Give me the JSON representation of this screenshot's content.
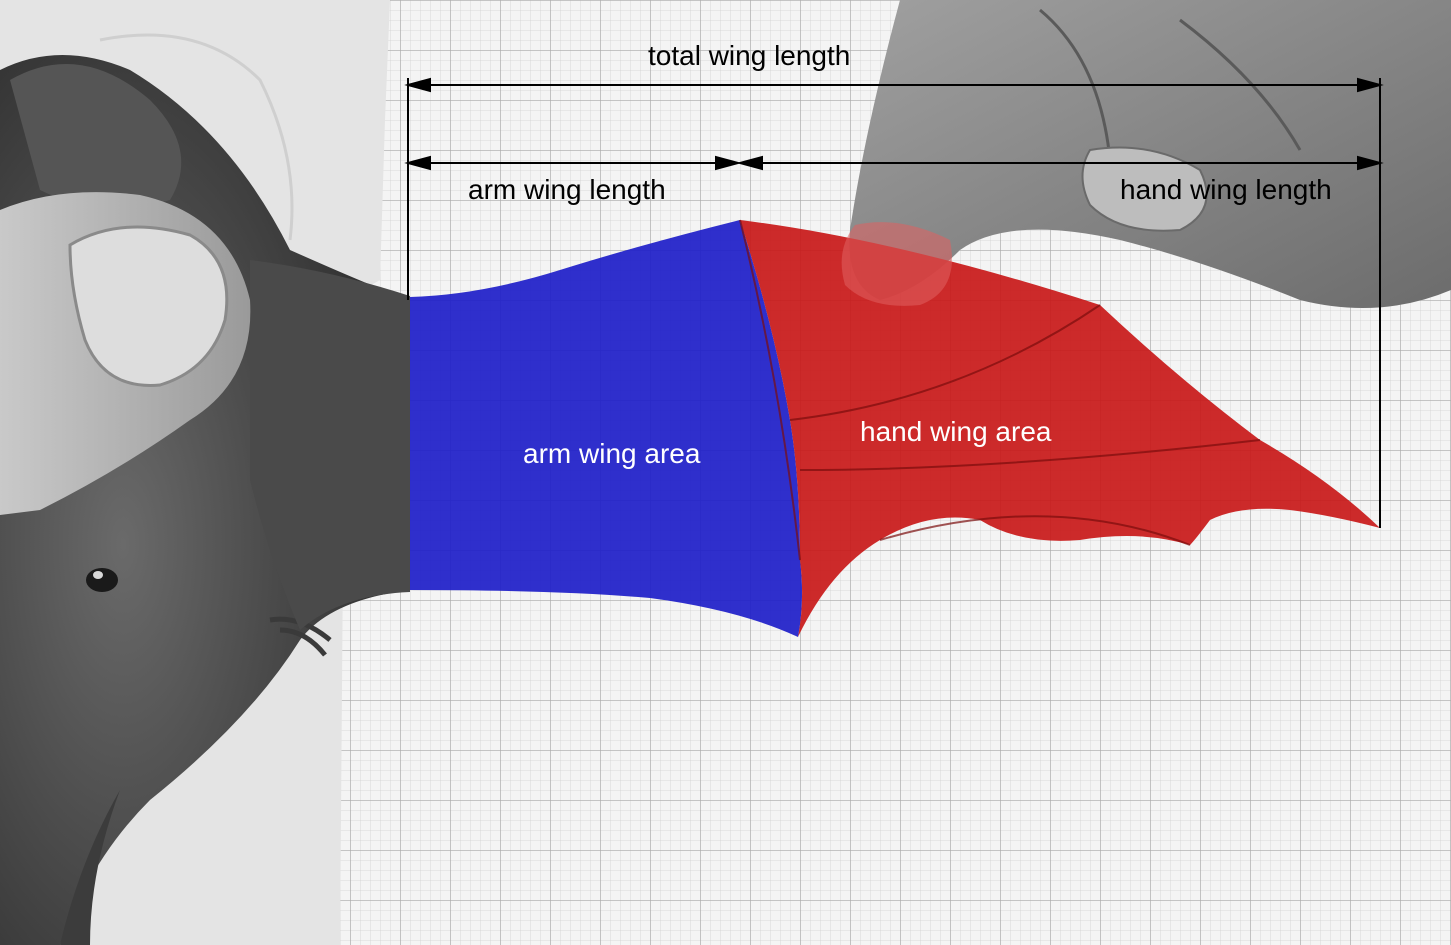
{
  "labels": {
    "total_wing_length": "total wing length",
    "arm_wing_length": "arm wing length",
    "hand_wing_length": "hand wing length",
    "arm_wing_area": "arm wing area",
    "hand_wing_area": "hand wing area"
  },
  "colors": {
    "arm_wing_area": "#1f1fc8",
    "hand_wing_area": "#c81414",
    "dimension_lines": "#000000",
    "graph_paper": "#f4f4f4",
    "grid_lines": "#c8c8c8"
  },
  "photo": {
    "subject": "bat wing spread over graph paper, held by fingers"
  }
}
